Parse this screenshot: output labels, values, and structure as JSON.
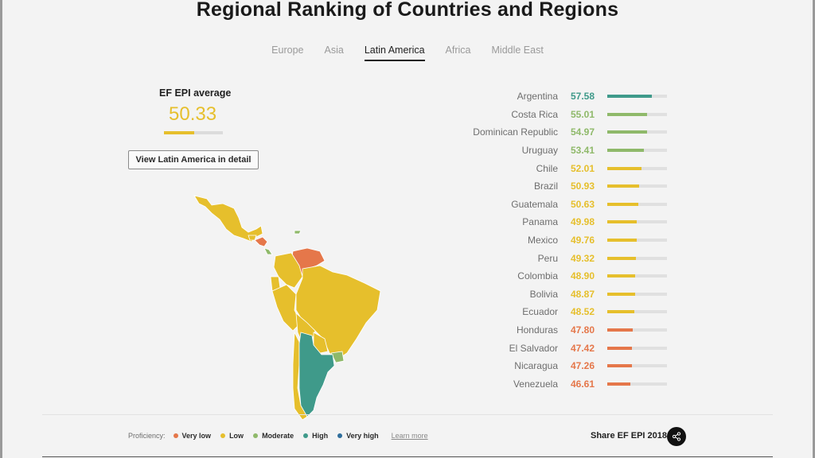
{
  "title": "Regional Ranking of Countries and Regions",
  "tabs": [
    {
      "label": "Europe",
      "active": false
    },
    {
      "label": "Asia",
      "active": false
    },
    {
      "label": "Latin America",
      "active": true
    },
    {
      "label": "Africa",
      "active": false
    },
    {
      "label": "Middle East",
      "active": false
    }
  ],
  "average": {
    "label": "EF EPI average",
    "value": "50.33",
    "color": "#e6bf2c"
  },
  "detail_button": "View Latin America in detail",
  "colors": {
    "very_low": "#e5774a",
    "low": "#e6bf2c",
    "moderate": "#8fb96a",
    "high": "#3f9a8a",
    "very_high": "#2f6e9c"
  },
  "ranking": [
    {
      "name": "Argentina",
      "score": "57.58",
      "level": "high"
    },
    {
      "name": "Costa Rica",
      "score": "55.01",
      "level": "moderate"
    },
    {
      "name": "Dominican Republic",
      "score": "54.97",
      "level": "moderate"
    },
    {
      "name": "Uruguay",
      "score": "53.41",
      "level": "moderate"
    },
    {
      "name": "Chile",
      "score": "52.01",
      "level": "low"
    },
    {
      "name": "Brazil",
      "score": "50.93",
      "level": "low"
    },
    {
      "name": "Guatemala",
      "score": "50.63",
      "level": "low"
    },
    {
      "name": "Panama",
      "score": "49.98",
      "level": "low"
    },
    {
      "name": "Mexico",
      "score": "49.76",
      "level": "low"
    },
    {
      "name": "Peru",
      "score": "49.32",
      "level": "low"
    },
    {
      "name": "Colombia",
      "score": "48.90",
      "level": "low"
    },
    {
      "name": "Bolivia",
      "score": "48.87",
      "level": "low"
    },
    {
      "name": "Ecuador",
      "score": "48.52",
      "level": "low"
    },
    {
      "name": "Honduras",
      "score": "47.80",
      "level": "very_low"
    },
    {
      "name": "El Salvador",
      "score": "47.42",
      "level": "very_low"
    },
    {
      "name": "Nicaragua",
      "score": "47.26",
      "level": "very_low"
    },
    {
      "name": "Venezuela",
      "score": "46.61",
      "level": "very_low"
    }
  ],
  "legend": {
    "label": "Proficiency:",
    "items": [
      {
        "label": "Very low",
        "level": "very_low"
      },
      {
        "label": "Low",
        "level": "low"
      },
      {
        "label": "Moderate",
        "level": "moderate"
      },
      {
        "label": "High",
        "level": "high"
      },
      {
        "label": "Very high",
        "level": "very_high"
      }
    ],
    "learn_more": "Learn more"
  },
  "share": {
    "label": "Share EF EPI 2018",
    "icon": "share-icon"
  }
}
